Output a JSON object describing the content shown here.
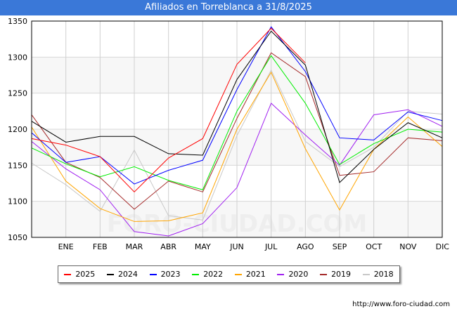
{
  "title": "Afiliados en Torreblanca a 31/8/2025",
  "url": "http://www.foro-ciudad.com",
  "watermark": "FORO-CIUDAD.COM",
  "chart_data": {
    "type": "line",
    "title": "Afiliados en Torreblanca a 31/8/2025",
    "categories": [
      "",
      "ENE",
      "FEB",
      "MAR",
      "ABR",
      "MAY",
      "JUN",
      "JUL",
      "AGO",
      "SEP",
      "OCT",
      "NOV",
      "DIC"
    ],
    "yticks": [
      1050,
      1100,
      1150,
      1200,
      1250,
      1300,
      1350
    ],
    "ylim": [
      1050,
      1350
    ],
    "legend_position": "bottom",
    "series": [
      {
        "name": "2025",
        "color": "#ff0000",
        "values": [
          1187,
          1178,
          1162,
          1113,
          1160,
          1187,
          1290,
          1340,
          1292,
          null,
          null,
          null,
          null
        ]
      },
      {
        "name": "2024",
        "color": "#000000",
        "values": [
          1211,
          1182,
          1190,
          1190,
          1166,
          1164,
          1269,
          1336,
          1289,
          1126,
          1172,
          1209,
          1188
        ]
      },
      {
        "name": "2023",
        "color": "#0000ff",
        "values": [
          1195,
          1154,
          1162,
          1124,
          1143,
          1157,
          1255,
          1342,
          1280,
          1188,
          1185,
          1224,
          1212
        ]
      },
      {
        "name": "2022",
        "color": "#00ee00",
        "values": [
          1174,
          1152,
          1134,
          1148,
          1129,
          1116,
          1225,
          1302,
          1236,
          1151,
          1180,
          1200,
          1196
        ]
      },
      {
        "name": "2021",
        "color": "#ffa500",
        "values": [
          1203,
          1128,
          1090,
          1072,
          1073,
          1084,
          1200,
          1279,
          1173,
          1088,
          1172,
          1217,
          1176
        ]
      },
      {
        "name": "2020",
        "color": "#a020f0",
        "values": [
          1183,
          1145,
          1116,
          1058,
          1052,
          1069,
          1119,
          1236,
          1192,
          1150,
          1220,
          1227,
          1204
        ]
      },
      {
        "name": "2019",
        "color": "#a52a2a",
        "values": [
          1220,
          1154,
          1133,
          1089,
          1128,
          1113,
          1215,
          1306,
          1273,
          1136,
          1141,
          1188,
          1184
        ]
      },
      {
        "name": "2018",
        "color": "#c8c8c8",
        "values": [
          1153,
          1123,
          1086,
          1171,
          1080,
          1074,
          1191,
          1282,
          1183,
          1148,
          1175,
          1225,
          1221
        ]
      }
    ]
  }
}
